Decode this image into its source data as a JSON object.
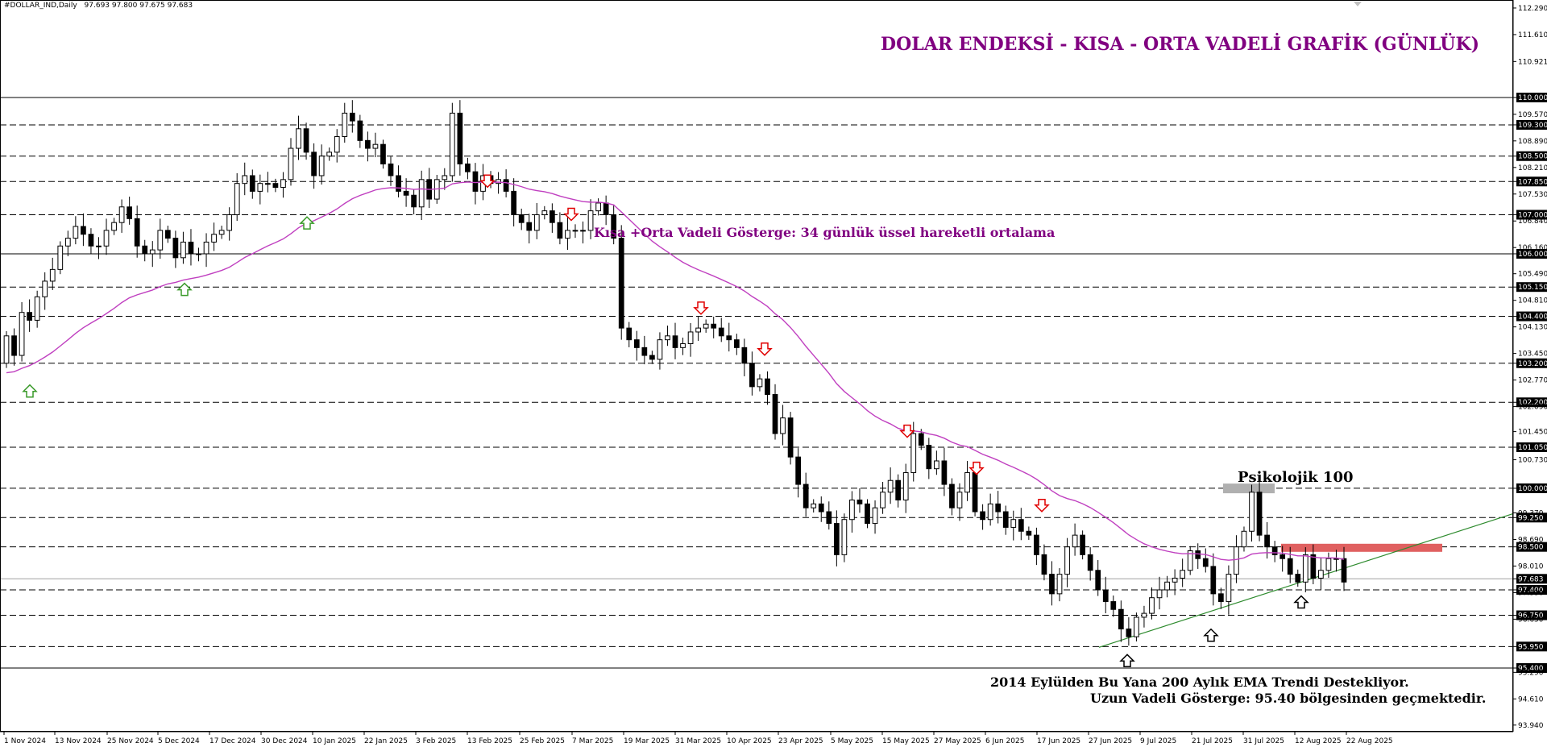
{
  "header": {
    "symbol": "#DOLLAR_IND,Daily",
    "ohlc": "97.693 97.800 97.675 97.683"
  },
  "annotations": {
    "title": "DOLAR ENDEKSİ - KISA - ORTA VADELİ GRAFİK (GÜNLÜK)",
    "ema_label": "Kısa +Orta Vadeli Gösterge: 34 günlük üssel hareketli ortalama",
    "psychological": "Psikolojik 100",
    "note_line1": "2014 Eylülden Bu Yana 200 Aylık EMA Trendi Destekliyor.",
    "note_line2": "Uzun Vadeli Gösterge: 95.40 bölgesinden geçmektedir."
  },
  "colors": {
    "candle": "#000000",
    "ema": "#c040c0",
    "trendline": "#2e8b2e",
    "title": "#800080",
    "down_arrow": "#e00000",
    "up_arrow_green": "#3a9a2a",
    "up_arrow_black": "#000000",
    "resistance_zone": "#e06060",
    "psych_zone": "#b0b0b0"
  },
  "chart_data": {
    "type": "candlestick",
    "title": "DOLAR ENDEKSİ - KISA - ORTA VADELİ GRAFİK (GÜNLÜK)",
    "ylim": [
      93.94,
      112.29
    ],
    "y_ticks": [
      "112.290",
      "111.610",
      "110.921",
      "110.000",
      "109.570",
      "109.300",
      "108.890",
      "108.500",
      "108.210",
      "107.850",
      "107.530",
      "107.000",
      "106.840",
      "106.160",
      "106.000",
      "105.490",
      "105.150",
      "104.810",
      "104.400",
      "104.130",
      "103.450",
      "103.200",
      "102.770",
      "102.200",
      "102.090",
      "101.450",
      "101.050",
      "100.730",
      "100.000",
      "99.370",
      "99.250",
      "98.690",
      "98.500",
      "98.010",
      "97.683",
      "97.400",
      "97.330",
      "96.750",
      "96.650",
      "95.950",
      "95.400",
      "95.290",
      "94.610",
      "93.940"
    ],
    "y_highlight": [
      "110.000",
      "109.300",
      "108.500",
      "107.850",
      "107.000",
      "106.000",
      "105.150",
      "104.400",
      "103.200",
      "102.200",
      "101.050",
      "100.000",
      "99.250",
      "98.500",
      "97.683",
      "97.400",
      "96.750",
      "95.950",
      "95.400"
    ],
    "x_labels": [
      "1 Nov 2024",
      "13 Nov 2024",
      "25 Nov 2024",
      "5 Dec 2024",
      "17 Dec 2024",
      "30 Dec 2024",
      "10 Jan 2025",
      "22 Jan 2025",
      "3 Feb 2025",
      "13 Feb 2025",
      "25 Feb 2025",
      "7 Mar 2025",
      "19 Mar 2025",
      "31 Mar 2025",
      "10 Apr 2025",
      "23 Apr 2025",
      "5 May 2025",
      "15 May 2025",
      "27 May 2025",
      "6 Jun 2025",
      "17 Jun 2025",
      "27 Jun 2025",
      "9 Jul 2025",
      "21 Jul 2025",
      "31 Jul 2025",
      "12 Aug 2025",
      "22 Aug 2025"
    ],
    "horizontal_levels_dashed": [
      109.3,
      108.5,
      107.85,
      107.0,
      105.15,
      104.4,
      103.2,
      102.2,
      101.05,
      100.0,
      99.25,
      98.5,
      97.4,
      96.75,
      95.95
    ],
    "horizontal_levels_solid": [
      110.0,
      106.0,
      95.4
    ],
    "current_price": 97.683,
    "closes": [
      103.9,
      103.4,
      104.5,
      104.3,
      104.9,
      105.3,
      105.6,
      106.2,
      106.4,
      106.7,
      106.5,
      106.2,
      106.2,
      106.6,
      106.8,
      107.2,
      106.9,
      106.2,
      106.0,
      106.1,
      106.6,
      106.4,
      105.9,
      106.3,
      106.0,
      106.0,
      106.3,
      106.5,
      106.6,
      107.0,
      107.8,
      108.0,
      107.6,
      107.8,
      107.8,
      107.7,
      107.9,
      108.7,
      109.2,
      108.6,
      108.0,
      108.5,
      108.6,
      109.0,
      109.6,
      109.4,
      108.9,
      108.7,
      108.8,
      108.3,
      108.0,
      107.6,
      107.5,
      107.2,
      107.9,
      107.4,
      107.9,
      108.0,
      109.6,
      108.3,
      108.1,
      107.6,
      108.0,
      107.8,
      107.9,
      107.6,
      107.0,
      106.8,
      106.6,
      107.0,
      107.1,
      106.8,
      106.4,
      106.6,
      106.6,
      106.6,
      107.1,
      107.3,
      107.0,
      106.4,
      104.1,
      103.8,
      103.6,
      103.4,
      103.3,
      103.8,
      103.9,
      103.6,
      103.7,
      104.0,
      104.1,
      104.2,
      104.1,
      103.9,
      103.8,
      103.6,
      103.2,
      102.6,
      102.8,
      102.4,
      101.4,
      101.8,
      100.8,
      100.1,
      99.5,
      99.6,
      99.4,
      99.1,
      98.3,
      99.2,
      99.7,
      99.6,
      99.1,
      99.5,
      99.9,
      100.2,
      99.7,
      100.4,
      101.4,
      101.1,
      100.5,
      100.7,
      100.1,
      99.5,
      99.9,
      100.4,
      99.4,
      99.2,
      99.6,
      99.4,
      99.0,
      99.2,
      98.9,
      98.8,
      98.3,
      97.8,
      97.3,
      97.8,
      98.5,
      98.8,
      98.3,
      97.9,
      97.4,
      97.1,
      96.9,
      96.4,
      96.2,
      96.7,
      96.8,
      97.2,
      97.4,
      97.6,
      97.7,
      97.9,
      98.4,
      98.2,
      98.0,
      97.3,
      97.1,
      97.8,
      98.5,
      98.9,
      99.9,
      98.8,
      98.5,
      98.3,
      98.2,
      97.8,
      97.6,
      98.3,
      97.7,
      97.9,
      98.2,
      98.2,
      97.6
    ]
  }
}
